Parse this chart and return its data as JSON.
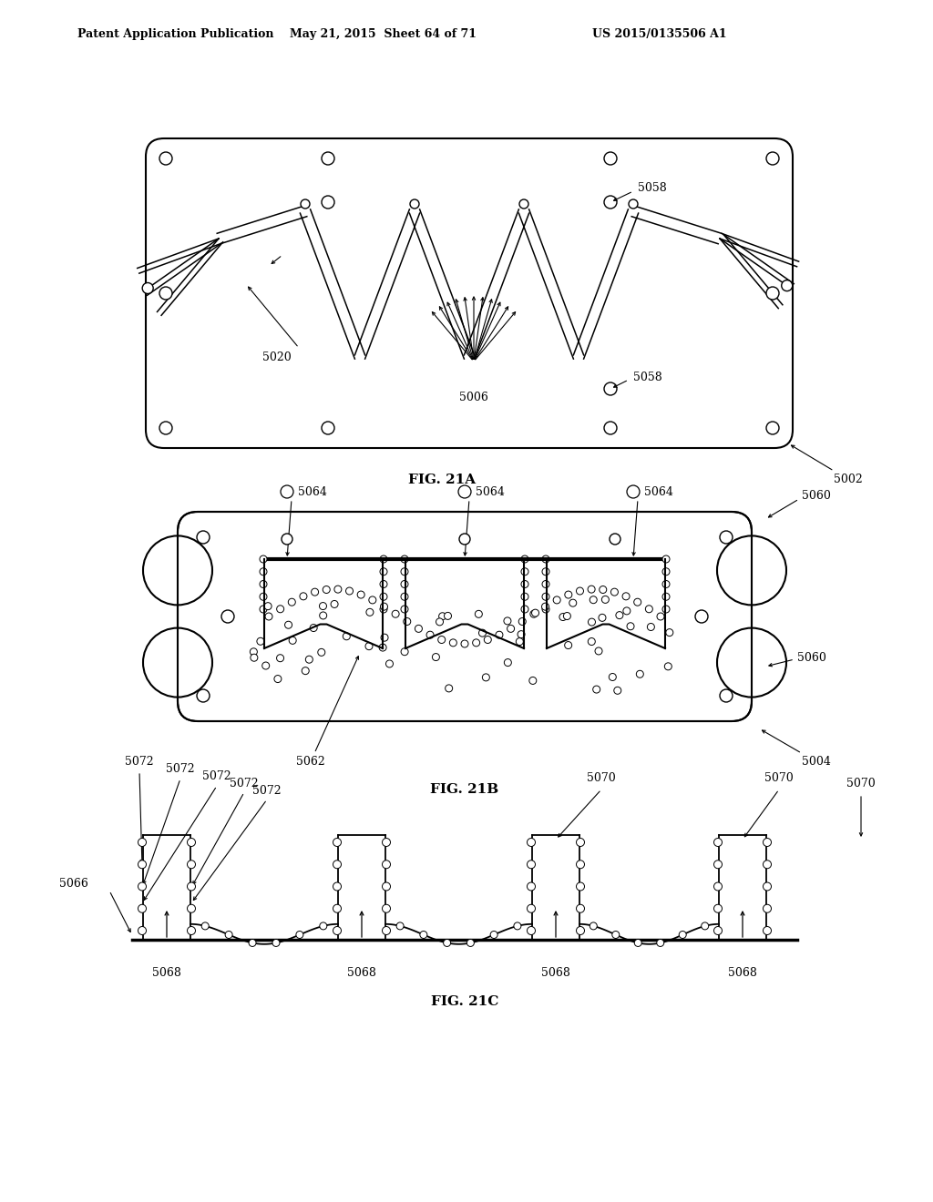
{
  "header_left": "Patent Application Publication",
  "header_mid": "May 21, 2015  Sheet 64 of 71",
  "header_right": "US 2015/0135506 A1",
  "fig21a_label": "FIG. 21A",
  "fig21b_label": "FIG. 21B",
  "fig21c_label": "FIG. 21C",
  "label_5002": "5002",
  "label_5004": "5004",
  "label_5006": "5006",
  "label_5020": "5020",
  "label_5058a": "5058",
  "label_5058b": "5058",
  "label_5060a": "5060",
  "label_5060b": "5060",
  "label_5062": "5062",
  "label_5064a": "5064",
  "label_5064b": "5064",
  "label_5064c": "5064",
  "label_5066": "5066",
  "label_5068a": "5068",
  "label_5068b": "5068",
  "label_5068c": "5068",
  "label_5068d": "5068",
  "label_5070a": "5070",
  "label_5070b": "5070",
  "label_5070c": "5070",
  "label_5072a": "5072",
  "label_5072b": "5072",
  "label_5072c": "5072",
  "label_5072d": "5072",
  "label_5072e": "5072",
  "bg_color": "#ffffff",
  "line_color": "#000000"
}
